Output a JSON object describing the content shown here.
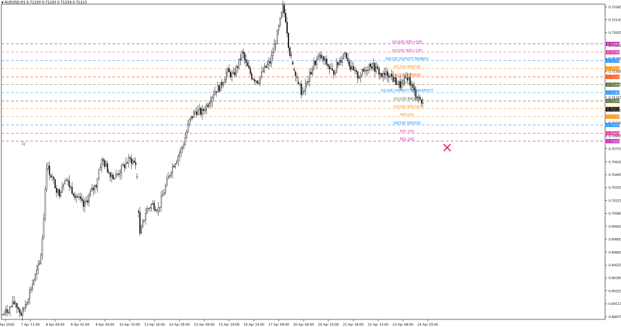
{
  "header": {
    "symbol_label": "AUDUSD,H1",
    "ohlc_label": "0.71193 0.71220 0.71159 0.71213"
  },
  "chart_data": {
    "type": "candlestick",
    "title": "AUDUSD,H1",
    "ylim": [
      0.69075,
      0.72285
    ],
    "y_ticks": [
      "0.72285",
      "0.72145",
      "0.72005",
      "0.71865",
      "0.71730",
      "0.71595",
      "0.71455",
      "0.71315",
      "0.71180",
      "0.71040",
      "0.70905",
      "0.70770",
      "0.70630",
      "0.70495",
      "0.70355",
      "0.70215",
      "0.70080",
      "0.69940",
      "0.69800",
      "0.69660",
      "0.69525",
      "0.69390",
      "0.69250",
      "0.69115",
      "0.68975"
    ],
    "x_ticks": [
      "6 Apr 2026",
      "7 Apr 11:00",
      "8 Apr 06:00",
      "9 Apr 01:00",
      "9 Apr 20:00",
      "10 Apr 15:00",
      "13 Apr 10:00",
      "14 Apr 05:00",
      "15 Apr 00:00",
      "15 Apr 19:00",
      "16 Apr 14:00",
      "17 Apr 09:00",
      "20 Apr 04:00",
      "20 Apr 23:00",
      "21 Apr 18:00",
      "22 Apr 13:00",
      "23 Apr 08:00",
      "24 Apr 03:00"
    ],
    "price_path": [
      [
        0.0,
        0.6912
      ],
      [
        0.01,
        0.6918
      ],
      [
        0.02,
        0.6925
      ],
      [
        0.03,
        0.6912
      ],
      [
        0.04,
        0.693
      ],
      [
        0.05,
        0.6948
      ],
      [
        0.06,
        0.6965
      ],
      [
        0.065,
        0.7
      ],
      [
        0.07,
        0.7065
      ],
      [
        0.08,
        0.705
      ],
      [
        0.09,
        0.7035
      ],
      [
        0.1,
        0.7052
      ],
      [
        0.11,
        0.704
      ],
      [
        0.12,
        0.7032
      ],
      [
        0.13,
        0.7022
      ],
      [
        0.14,
        0.7035
      ],
      [
        0.15,
        0.7045
      ],
      [
        0.155,
        0.7062
      ],
      [
        0.16,
        0.707
      ],
      [
        0.17,
        0.7058
      ],
      [
        0.18,
        0.7052
      ],
      [
        0.19,
        0.706
      ],
      [
        0.2,
        0.7068
      ],
      [
        0.205,
        0.707
      ],
      [
        0.215,
        0.7065
      ],
      [
        0.22,
        0.6992
      ],
      [
        0.225,
        0.7005
      ],
      [
        0.23,
        0.7018
      ],
      [
        0.24,
        0.7025
      ],
      [
        0.25,
        0.702
      ],
      [
        0.26,
        0.704
      ],
      [
        0.27,
        0.706
      ],
      [
        0.28,
        0.7072
      ],
      [
        0.29,
        0.7085
      ],
      [
        0.3,
        0.711
      ],
      [
        0.31,
        0.712
      ],
      [
        0.32,
        0.7118
      ],
      [
        0.33,
        0.7128
      ],
      [
        0.34,
        0.714
      ],
      [
        0.35,
        0.7145
      ],
      [
        0.36,
        0.716
      ],
      [
        0.37,
        0.7155
      ],
      [
        0.38,
        0.717
      ],
      [
        0.385,
        0.718
      ],
      [
        0.39,
        0.7168
      ],
      [
        0.4,
        0.7155
      ],
      [
        0.41,
        0.715
      ],
      [
        0.42,
        0.7162
      ],
      [
        0.43,
        0.717
      ],
      [
        0.44,
        0.7195
      ],
      [
        0.45,
        0.7225
      ],
      [
        0.455,
        0.7212
      ],
      [
        0.46,
        0.7182
      ],
      [
        0.465,
        0.717
      ],
      [
        0.475,
        0.715
      ],
      [
        0.48,
        0.7138
      ],
      [
        0.49,
        0.715
      ],
      [
        0.5,
        0.7168
      ],
      [
        0.51,
        0.7175
      ],
      [
        0.52,
        0.7168
      ],
      [
        0.53,
        0.7158
      ],
      [
        0.54,
        0.717
      ],
      [
        0.55,
        0.718
      ],
      [
        0.56,
        0.7162
      ],
      [
        0.57,
        0.7155
      ],
      [
        0.58,
        0.716
      ],
      [
        0.59,
        0.7168
      ],
      [
        0.6,
        0.7162
      ],
      [
        0.61,
        0.7155
      ],
      [
        0.62,
        0.7158
      ],
      [
        0.63,
        0.715
      ],
      [
        0.64,
        0.7145
      ],
      [
        0.65,
        0.7155
      ],
      [
        0.66,
        0.714
      ],
      [
        0.67,
        0.7132
      ],
      [
        0.675,
        0.7125
      ]
    ],
    "levels": [
      {
        "label": "H1[4/8] WD[+2/8]",
        "price": 0.7188,
        "color": "#c21fb4",
        "tag": "0.71880"
      },
      {
        "label": "H1[5/8] WD[+1/8]",
        "price": 0.71795,
        "color": "#e0389e",
        "tag": "0.71795"
      },
      {
        "label": "H4[7/8] H1PIVOT MOBKEY",
        "price": 0.7171,
        "color": "#1e90ff",
        "tag": "0.71710"
      },
      {
        "label": "H1[3/8] MN[7/8]",
        "price": 0.7163,
        "color": "#ff8c00",
        "tag": "0.71630"
      },
      {
        "label": "H1[2/8] WD[6/8]",
        "price": 0.71545,
        "color": "#ff4500",
        "tag": "0.71545"
      },
      {
        "label": "H4[6/8]",
        "price": 0.71465,
        "color": "#556b2f",
        "tag": "0.71465"
      },
      {
        "label": "D1[4/8] H4PIVOT D1 MD4PIVOT",
        "price": 0.71385,
        "color": "#1e90ff",
        "tag": "0.71385"
      },
      {
        "label": "H1[1/8] M4[6/8]",
        "price": 0.713,
        "color": "#556b2f",
        "tag": "0.71300"
      },
      {
        "label": "H1[0/8] WD[3/8]",
        "price": 0.7122,
        "color": "#ff8c00",
        "tag": "0.71220"
      },
      {
        "label": "WD[2/8]",
        "price": 0.7114,
        "color": "#ff8c00",
        "tag": "0.71140"
      },
      {
        "label": "H4[5/8] WD[0/8]",
        "price": 0.71055,
        "color": "#1e90ff",
        "tag": "0.71055"
      },
      {
        "label": "M3[-1/8]",
        "price": 0.7097,
        "color": "#e0389e",
        "tag": "0.70970"
      },
      {
        "label": "M3[-2/8]",
        "price": 0.7089,
        "color": "#c21fb4",
        "tag": "0.70890"
      }
    ],
    "current_price_tag": "0.71213",
    "marker": "x"
  },
  "colors": {
    "candle": "#000000",
    "grid_axis": "#000000",
    "marker": "#e8284a",
    "current_tag_bg": "#000000"
  }
}
